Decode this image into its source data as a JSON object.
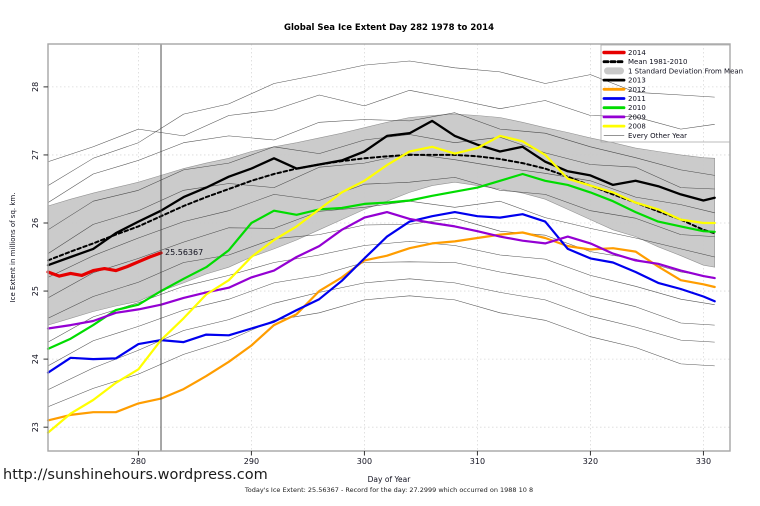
{
  "page": {
    "url": "http://sunshinehours.wordpress.com",
    "footer": "Today's Ice Extent: 25.56367  - Record for the day: 27.2999 which occurred on 1988 10 8"
  },
  "chart_data": {
    "type": "line",
    "title": "Global Sea Ice Extent Day 282 1978 to 2014",
    "xlabel": "Day of Year",
    "ylabel": "Ice Extent in millions of sq. km.",
    "xlim": [
      272,
      332.35
    ],
    "ylim": [
      22.65,
      28.63
    ],
    "xticks": [
      280,
      290,
      300,
      310,
      320,
      330
    ],
    "yticks": [
      23,
      24,
      25,
      26,
      27,
      28
    ],
    "grid": "dotted",
    "grid_color": "#d9d9d9",
    "axis_color": "#a6a6a6",
    "today_line_day": 282,
    "annotation": {
      "text": "25.56367",
      "day": 282,
      "value": 25.56367,
      "color": "#e60000"
    },
    "x": [
      272,
      274,
      276,
      278,
      280,
      282,
      284,
      286,
      288,
      290,
      292,
      294,
      296,
      298,
      300,
      302,
      304,
      306,
      308,
      310,
      312,
      314,
      316,
      318,
      320,
      322,
      324,
      326,
      328,
      330,
      331
    ],
    "band": {
      "name": "1 Standard Deviation From Mean",
      "fill": "#c9c9c9",
      "edge": "#8f8f8f",
      "upper": [
        26.25,
        26.35,
        26.44,
        26.52,
        26.6,
        26.7,
        26.8,
        26.88,
        26.95,
        27.05,
        27.12,
        27.18,
        27.25,
        27.32,
        27.4,
        27.48,
        27.55,
        27.58,
        27.6,
        27.58,
        27.55,
        27.48,
        27.4,
        27.33,
        27.25,
        27.18,
        27.1,
        27.05,
        27.0,
        26.96,
        26.95
      ],
      "lower": [
        24.5,
        24.6,
        24.7,
        24.78,
        24.85,
        25.0,
        25.12,
        25.25,
        25.35,
        25.5,
        25.62,
        25.75,
        25.9,
        26.05,
        26.2,
        26.32,
        26.45,
        26.55,
        26.6,
        26.55,
        26.5,
        26.44,
        26.35,
        26.2,
        26.05,
        25.9,
        25.8,
        25.65,
        25.52,
        25.38,
        25.35
      ]
    },
    "series": [
      {
        "name": "2013",
        "color": "#000000",
        "lw": 2.3,
        "y": [
          25.38,
          25.5,
          25.62,
          25.85,
          26.02,
          26.18,
          26.38,
          26.52,
          26.68,
          26.8,
          26.95,
          26.8,
          26.86,
          26.92,
          27.05,
          27.28,
          27.32,
          27.5,
          27.28,
          27.15,
          27.05,
          27.12,
          26.9,
          26.76,
          26.7,
          26.56,
          26.62,
          26.54,
          26.42,
          26.33,
          26.37
        ]
      },
      {
        "name": "Mean 1981-2010",
        "color": "#000000",
        "lw": 2.0,
        "dash": "3.5,2.8",
        "y": [
          25.45,
          25.58,
          25.7,
          25.83,
          25.95,
          26.1,
          26.25,
          26.38,
          26.5,
          26.62,
          26.72,
          26.8,
          26.86,
          26.91,
          26.95,
          26.98,
          27.0,
          27.0,
          27.0,
          26.98,
          26.94,
          26.88,
          26.8,
          26.68,
          26.55,
          26.42,
          26.3,
          26.17,
          26.05,
          25.9,
          25.85
        ]
      },
      {
        "name": "2012",
        "color": "#ff9d00",
        "lw": 2.2,
        "y": [
          23.1,
          23.18,
          23.22,
          23.22,
          23.35,
          23.42,
          23.56,
          23.75,
          23.96,
          24.2,
          24.5,
          24.66,
          25.0,
          25.2,
          25.45,
          25.52,
          25.63,
          25.7,
          25.73,
          25.78,
          25.83,
          25.86,
          25.78,
          25.66,
          25.61,
          25.63,
          25.58,
          25.36,
          25.16,
          25.1,
          25.06
        ]
      },
      {
        "name": "2011",
        "color": "#0000ee",
        "lw": 2.2,
        "y": [
          23.8,
          24.02,
          24.0,
          24.01,
          24.22,
          24.28,
          24.25,
          24.36,
          24.35,
          24.45,
          24.55,
          24.72,
          24.88,
          25.15,
          25.48,
          25.8,
          26.02,
          26.1,
          26.16,
          26.1,
          26.08,
          26.13,
          26.02,
          25.62,
          25.48,
          25.42,
          25.28,
          25.12,
          25.03,
          24.92,
          24.85
        ]
      },
      {
        "name": "2010",
        "color": "#00dc00",
        "lw": 2.2,
        "y": [
          24.15,
          24.3,
          24.5,
          24.72,
          24.8,
          25.0,
          25.18,
          25.35,
          25.6,
          26.0,
          26.18,
          26.12,
          26.2,
          26.22,
          26.28,
          26.3,
          26.33,
          26.4,
          26.46,
          26.52,
          26.62,
          26.72,
          26.62,
          26.56,
          26.45,
          26.32,
          26.16,
          26.02,
          25.95,
          25.88,
          25.87
        ]
      },
      {
        "name": "2009",
        "color": "#9400d3",
        "lw": 2.2,
        "y": [
          24.45,
          24.5,
          24.56,
          24.68,
          24.73,
          24.8,
          24.9,
          24.98,
          25.05,
          25.2,
          25.3,
          25.5,
          25.66,
          25.9,
          26.08,
          26.16,
          26.06,
          26.0,
          25.95,
          25.88,
          25.8,
          25.74,
          25.7,
          25.8,
          25.7,
          25.55,
          25.45,
          25.4,
          25.3,
          25.22,
          25.19
        ]
      },
      {
        "name": "2008",
        "color": "#ffff00",
        "lw": 2.2,
        "y": [
          22.92,
          23.2,
          23.4,
          23.65,
          23.85,
          24.28,
          24.6,
          24.95,
          25.16,
          25.5,
          25.75,
          25.95,
          26.2,
          26.45,
          26.62,
          26.85,
          27.05,
          27.12,
          27.02,
          27.1,
          27.28,
          27.2,
          27.0,
          26.65,
          26.55,
          26.45,
          26.3,
          26.2,
          26.05,
          26.0,
          26.0
        ]
      },
      {
        "name": "2014",
        "color": "#e60000",
        "lw": 3.2,
        "x": [
          272,
          273,
          274,
          275,
          276,
          277,
          278,
          279,
          280,
          281,
          282
        ],
        "y": [
          25.28,
          25.22,
          25.26,
          25.23,
          25.3,
          25.33,
          25.3,
          25.36,
          25.43,
          25.5,
          25.56
        ]
      }
    ],
    "other_years_label": "Every Other Year",
    "other_years_color": "#2d2d2d",
    "other_years_x": [
      272,
      276,
      280,
      284,
      288,
      292,
      296,
      300,
      304,
      308,
      312,
      316,
      320,
      324,
      328,
      331
    ],
    "other_years": [
      [
        26.55,
        26.95,
        27.18,
        27.6,
        27.75,
        28.05,
        28.18,
        28.32,
        28.38,
        28.28,
        28.22,
        28.05,
        28.18,
        27.92,
        27.88,
        27.85
      ],
      [
        26.9,
        27.12,
        27.38,
        27.28,
        27.58,
        27.66,
        27.88,
        27.72,
        27.95,
        27.82,
        27.68,
        27.8,
        27.58,
        27.56,
        27.38,
        27.45
      ],
      [
        26.3,
        26.72,
        26.92,
        27.18,
        27.28,
        27.22,
        27.48,
        27.52,
        27.5,
        27.62,
        27.38,
        27.32,
        27.12,
        26.96,
        26.78,
        26.7
      ],
      [
        25.9,
        26.32,
        26.48,
        26.78,
        26.88,
        27.12,
        27.02,
        27.22,
        27.3,
        27.18,
        27.26,
        27.03,
        26.86,
        26.82,
        26.52,
        26.5
      ],
      [
        25.55,
        25.98,
        26.18,
        26.48,
        26.58,
        26.52,
        26.82,
        26.88,
        27.02,
        26.93,
        26.82,
        26.73,
        26.62,
        26.38,
        26.27,
        26.15
      ],
      [
        25.2,
        25.52,
        25.78,
        26.02,
        26.18,
        26.42,
        26.33,
        26.57,
        26.6,
        26.67,
        26.48,
        26.42,
        26.18,
        26.07,
        25.83,
        25.8
      ],
      [
        24.9,
        25.27,
        25.48,
        25.72,
        25.93,
        25.92,
        26.17,
        26.23,
        26.32,
        26.23,
        26.32,
        26.08,
        25.92,
        25.78,
        25.62,
        25.5
      ],
      [
        24.6,
        24.92,
        25.13,
        25.42,
        25.53,
        25.77,
        25.83,
        25.97,
        25.98,
        26.07,
        25.88,
        25.82,
        25.58,
        25.47,
        25.28,
        25.2
      ],
      [
        24.25,
        24.62,
        24.83,
        25.07,
        25.23,
        25.42,
        25.53,
        25.67,
        25.73,
        25.67,
        25.53,
        25.47,
        25.23,
        25.07,
        24.88,
        24.8
      ],
      [
        23.9,
        24.27,
        24.48,
        24.72,
        24.88,
        25.12,
        25.23,
        25.42,
        25.43,
        25.42,
        25.28,
        25.17,
        24.93,
        24.77,
        24.53,
        24.5
      ],
      [
        23.55,
        23.87,
        24.13,
        24.42,
        24.58,
        24.82,
        24.98,
        25.12,
        25.18,
        25.12,
        24.98,
        24.87,
        24.63,
        24.47,
        24.28,
        24.25
      ],
      [
        23.3,
        23.57,
        23.78,
        24.07,
        24.28,
        24.57,
        24.68,
        24.87,
        24.93,
        24.87,
        24.68,
        24.57,
        24.33,
        24.17,
        23.93,
        23.9
      ]
    ],
    "legend": {
      "position": "top-right",
      "items": [
        {
          "label": "2014",
          "color": "#e60000",
          "style": "thick"
        },
        {
          "label": "Mean 1981-2010",
          "color": "#000000",
          "style": "dashed"
        },
        {
          "label": "1 Standard Deviation From Mean",
          "color": "#c9c9c9",
          "style": "band"
        },
        {
          "label": "2013",
          "color": "#000000",
          "style": "thick"
        },
        {
          "label": "2012",
          "color": "#ff9d00",
          "style": "thick"
        },
        {
          "label": "2011",
          "color": "#0000ee",
          "style": "thick"
        },
        {
          "label": "2010",
          "color": "#00dc00",
          "style": "thick"
        },
        {
          "label": "2009",
          "color": "#9400d3",
          "style": "thick"
        },
        {
          "label": "2008",
          "color": "#ffff00",
          "style": "thick"
        },
        {
          "label": "Every Other Year",
          "color": "#555555",
          "style": "thin"
        }
      ]
    }
  }
}
